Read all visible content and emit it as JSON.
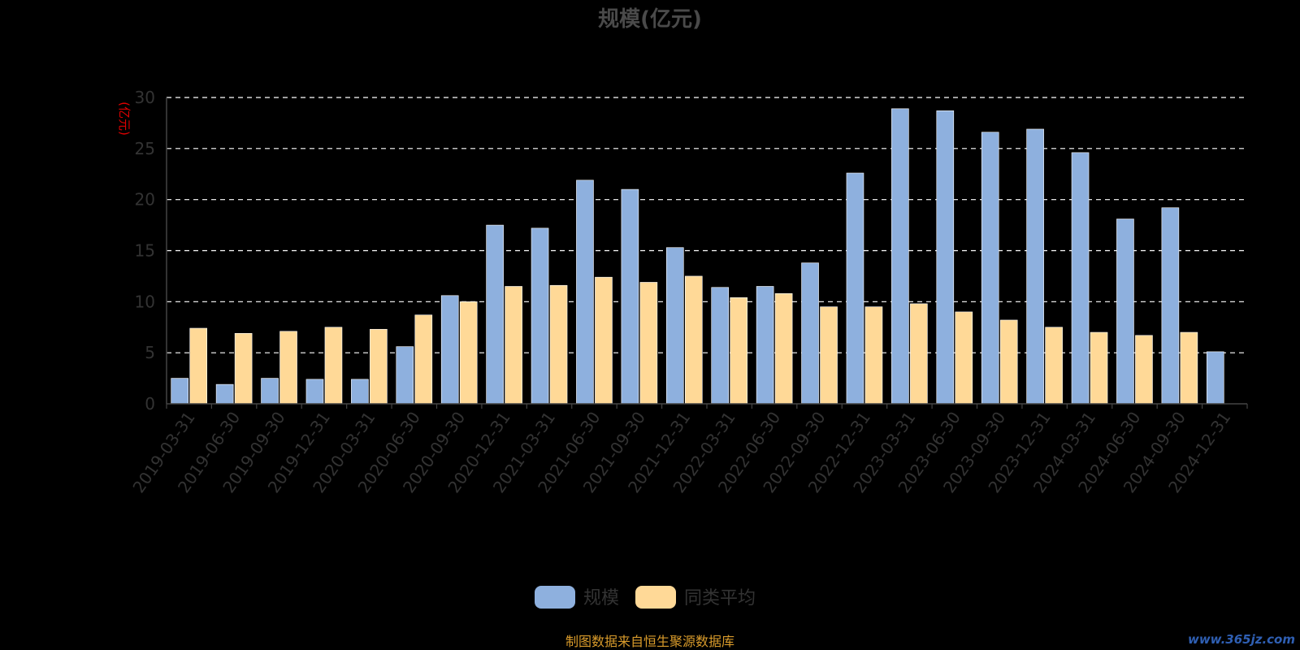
{
  "chart_data": {
    "type": "bar",
    "title": "规模(亿元)",
    "ylabel": "(亿元)",
    "xlabel": "",
    "ylim": [
      0,
      30
    ],
    "yticks": [
      "0",
      "5",
      "10",
      "15",
      "20",
      "25",
      "30"
    ],
    "grid": true,
    "legend_position": "bottom",
    "categories": [
      "2019-03-31",
      "2019-06-30",
      "2019-09-30",
      "2019-12-31",
      "2020-03-31",
      "2020-06-30",
      "2020-09-30",
      "2020-12-31",
      "2021-03-31",
      "2021-06-30",
      "2021-09-30",
      "2021-12-31",
      "2022-03-31",
      "2022-06-30",
      "2022-09-30",
      "2022-12-31",
      "2023-03-31",
      "2023-06-30",
      "2023-09-30",
      "2023-12-31",
      "2024-03-31",
      "2024-06-30",
      "2024-09-30",
      "2024-12-31"
    ],
    "series": [
      {
        "name": "规模",
        "color": "#8eb0de",
        "values": [
          2.5,
          1.9,
          2.5,
          2.4,
          2.4,
          5.6,
          10.6,
          17.5,
          17.2,
          21.9,
          21.0,
          15.3,
          11.4,
          11.5,
          13.8,
          22.6,
          28.9,
          28.7,
          26.6,
          26.9,
          24.6,
          18.1,
          19.2,
          5.1
        ]
      },
      {
        "name": "同类平均",
        "color": "#ffd997",
        "values": [
          7.4,
          6.9,
          7.1,
          7.5,
          7.3,
          8.7,
          10.0,
          11.5,
          11.6,
          12.4,
          11.9,
          12.5,
          10.4,
          10.8,
          9.5,
          9.5,
          9.8,
          9.0,
          8.2,
          7.5,
          7.0,
          6.7,
          7.0,
          null
        ]
      }
    ],
    "colors": {
      "background": "#000000",
      "title": "#4a4a4a",
      "ylabel": "#e00000",
      "axis_text": "#333333",
      "axis_line": "#444444",
      "grid": "#ffffff",
      "legend_text": "#333333",
      "source": "#d99b2b"
    }
  },
  "footer": {
    "source": "制图数据来自恒生聚源数据库",
    "watermark": "www.365jz.com"
  }
}
